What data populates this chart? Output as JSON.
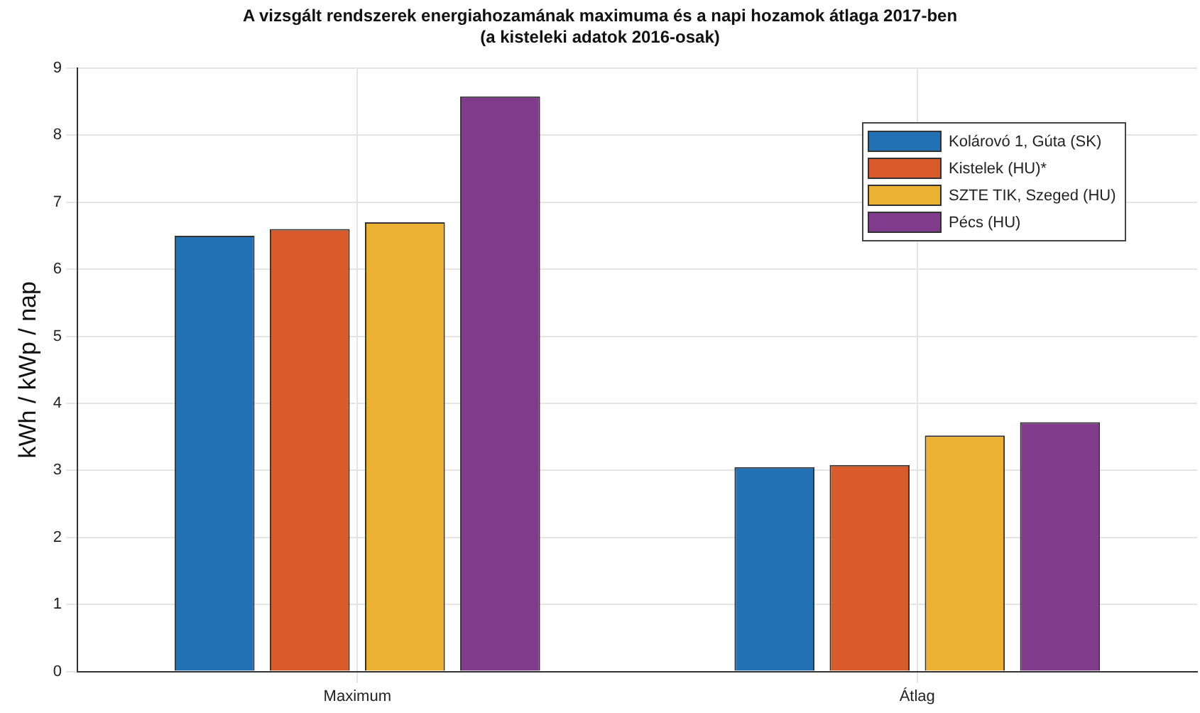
{
  "chart_data": {
    "type": "bar",
    "title": "A vizsgált rendszerek energiahozamának maximuma és a napi hozamok átlaga 2017-ben",
    "subtitle": "(a kisteleki adatok 2016-osak)",
    "ylabel": "kWh / kWp / nap",
    "categories": [
      "Maximum",
      "Átlag"
    ],
    "series": [
      {
        "name": "Kolárovó 1, Gúta (SK)",
        "color": "#2371b5",
        "values": [
          6.5,
          3.05
        ]
      },
      {
        "name": "Kistelek (HU)*",
        "color": "#d95a2b",
        "values": [
          6.6,
          3.08
        ]
      },
      {
        "name": "SZTE TIK, Szeged (HU)",
        "color": "#ebb133",
        "values": [
          6.7,
          3.52
        ]
      },
      {
        "name": "Pécs (HU)",
        "color": "#813b8c",
        "values": [
          8.58,
          3.72
        ]
      }
    ],
    "ylim": [
      0,
      9
    ],
    "yticks": [
      0,
      1,
      2,
      3,
      4,
      5,
      6,
      7,
      8,
      9
    ],
    "grid": true,
    "legend": "top right"
  }
}
